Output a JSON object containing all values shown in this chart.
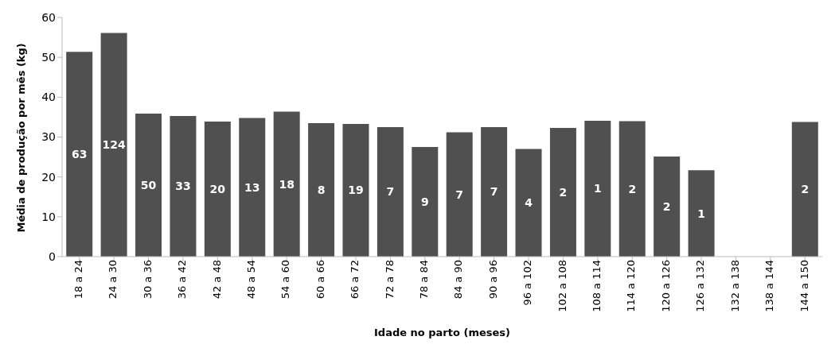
{
  "chart_data": {
    "type": "bar",
    "xlabel": "Idade no parto (meses)",
    "ylabel": "Média de produção por mês (kg)",
    "categories": [
      "18 a 24",
      "24 a 30",
      "30 a 36",
      "36 a 42",
      "42 a 48",
      "48 a 54",
      "54 a 60",
      "60 a 66",
      "66 a 72",
      "72 a 78",
      "78 a 84",
      "84 a 90",
      "90 a 96",
      "96 a 102",
      "102 a 108",
      "108 a 114",
      "114 a 120",
      "120 a 126",
      "126 a 132",
      "132 a 138",
      "138 a 144",
      "144 a 150"
    ],
    "values": [
      51.4,
      56.1,
      35.9,
      35.3,
      33.9,
      34.8,
      36.4,
      33.5,
      33.3,
      32.5,
      27.5,
      31.2,
      32.5,
      27.0,
      32.3,
      34.1,
      34.0,
      25.1,
      21.7,
      null,
      null,
      33.8
    ],
    "annotations": [
      "63",
      "124",
      "50",
      "33",
      "20",
      "13",
      "18",
      "8",
      "19",
      "7",
      "9",
      "7",
      "7",
      "4",
      "2",
      "1",
      "2",
      "2",
      "1",
      "2"
    ],
    "color": "#505050",
    "ylim": [
      0,
      60
    ],
    "yticks": [
      0,
      10,
      20,
      30,
      40,
      50,
      60
    ],
    "grid": false,
    "legend": false
  }
}
